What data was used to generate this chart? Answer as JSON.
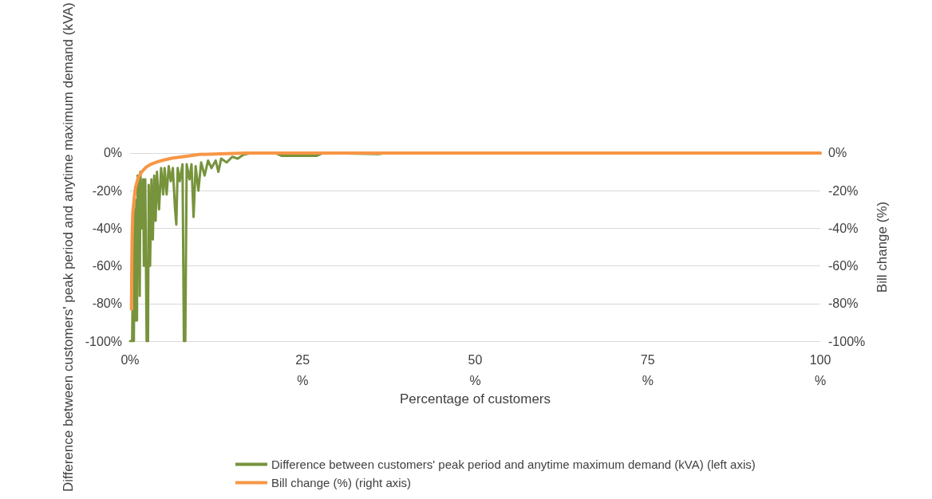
{
  "chart_data": {
    "type": "line",
    "xlabel": "Percentage of customers",
    "ylabel": "Difference between customers' peak period and anytime maximum demand (kVA)",
    "y2label": "Bill change (%)",
    "xlim": [
      0,
      100
    ],
    "xticks": [
      {
        "value": 0,
        "label": "0%"
      },
      {
        "value": 25,
        "label": "25 %"
      },
      {
        "value": 50,
        "label": "50 %"
      },
      {
        "value": 75,
        "label": "75 %"
      },
      {
        "value": 100,
        "label": "100 %"
      }
    ],
    "ylim": [
      -100,
      0
    ],
    "yticks": [
      {
        "value": -100,
        "label": "-100%"
      },
      {
        "value": -80,
        "label": "-80%"
      },
      {
        "value": -60,
        "label": "-60%"
      },
      {
        "value": -40,
        "label": "-40%"
      },
      {
        "value": -20,
        "label": "-20%"
      },
      {
        "value": 0,
        "label": "0%"
      }
    ],
    "y2lim": [
      -100,
      0
    ],
    "y2ticks": [
      {
        "value": -100,
        "label": "-100%"
      },
      {
        "value": -80,
        "label": "-80%"
      },
      {
        "value": -60,
        "label": "-60%"
      },
      {
        "value": -40,
        "label": "-40%"
      },
      {
        "value": -20,
        "label": "-20%"
      },
      {
        "value": 0,
        "label": "0%"
      }
    ],
    "grid": "y",
    "legend": "bottom",
    "marker": "none",
    "series": [
      {
        "name": "Difference between customers' peak period and anytime maximum demand (kVA) (left axis)",
        "color": "#77933c",
        "x": [
          0,
          0.3,
          0.35,
          0.5,
          0.55,
          0.6,
          0.65,
          0.8,
          0.9,
          1.0,
          1.1,
          1.2,
          1.3,
          1.4,
          1.5,
          1.7,
          1.9,
          2.0,
          2.2,
          2.4,
          2.6,
          2.7,
          2.9,
          3.1,
          3.3,
          3.5,
          3.7,
          3.9,
          4.2,
          4.5,
          4.8,
          5.0,
          5.3,
          5.6,
          5.9,
          6.2,
          6.5,
          6.7,
          6.9,
          7.2,
          7.6,
          7.8,
          8.0,
          8.2,
          8.6,
          8.9,
          9.2,
          9.5,
          9.9,
          10.3,
          10.8,
          11.3,
          11.8,
          12.4,
          12.8,
          13.2,
          14,
          14.8,
          15.6,
          16.4,
          17,
          17.5,
          21,
          22,
          27,
          28,
          36,
          37,
          100
        ],
        "values": [
          -100,
          -100,
          -84,
          -84,
          -100,
          -100,
          -30,
          -89,
          -25,
          -89,
          -12,
          -60,
          -15,
          -76,
          -10,
          -40,
          -14,
          -60,
          -14,
          -100,
          -100,
          -17,
          -60,
          -14,
          -46,
          -12,
          -36,
          -10,
          -30,
          -8,
          -22,
          -8,
          -22,
          -7,
          -15,
          -8,
          -29,
          -38,
          -8,
          -15,
          -6,
          -100,
          -100,
          -6,
          -14,
          -6,
          -34,
          -7,
          -20,
          -5,
          -12,
          -4,
          -8,
          -4,
          -10,
          -3,
          -5,
          -2,
          -3,
          -1,
          -0.5,
          0,
          0,
          -1.5,
          -1.5,
          0,
          -0.5,
          0,
          0
        ]
      },
      {
        "name": "Bill change (%) (right axis)",
        "color": "#f79646",
        "axis": "y2",
        "x": [
          0.2,
          0.25,
          0.3,
          0.4,
          0.6,
          0.8,
          1.2,
          1.7,
          2.3,
          3,
          4,
          5,
          6.2,
          8,
          10,
          13,
          17,
          100
        ],
        "values": [
          -83,
          -60,
          -45,
          -32,
          -24,
          -18,
          -13,
          -10,
          -7.6,
          -6,
          -4.6,
          -3.6,
          -2.7,
          -1.8,
          -0.8,
          -0.4,
          0,
          0
        ]
      }
    ]
  }
}
